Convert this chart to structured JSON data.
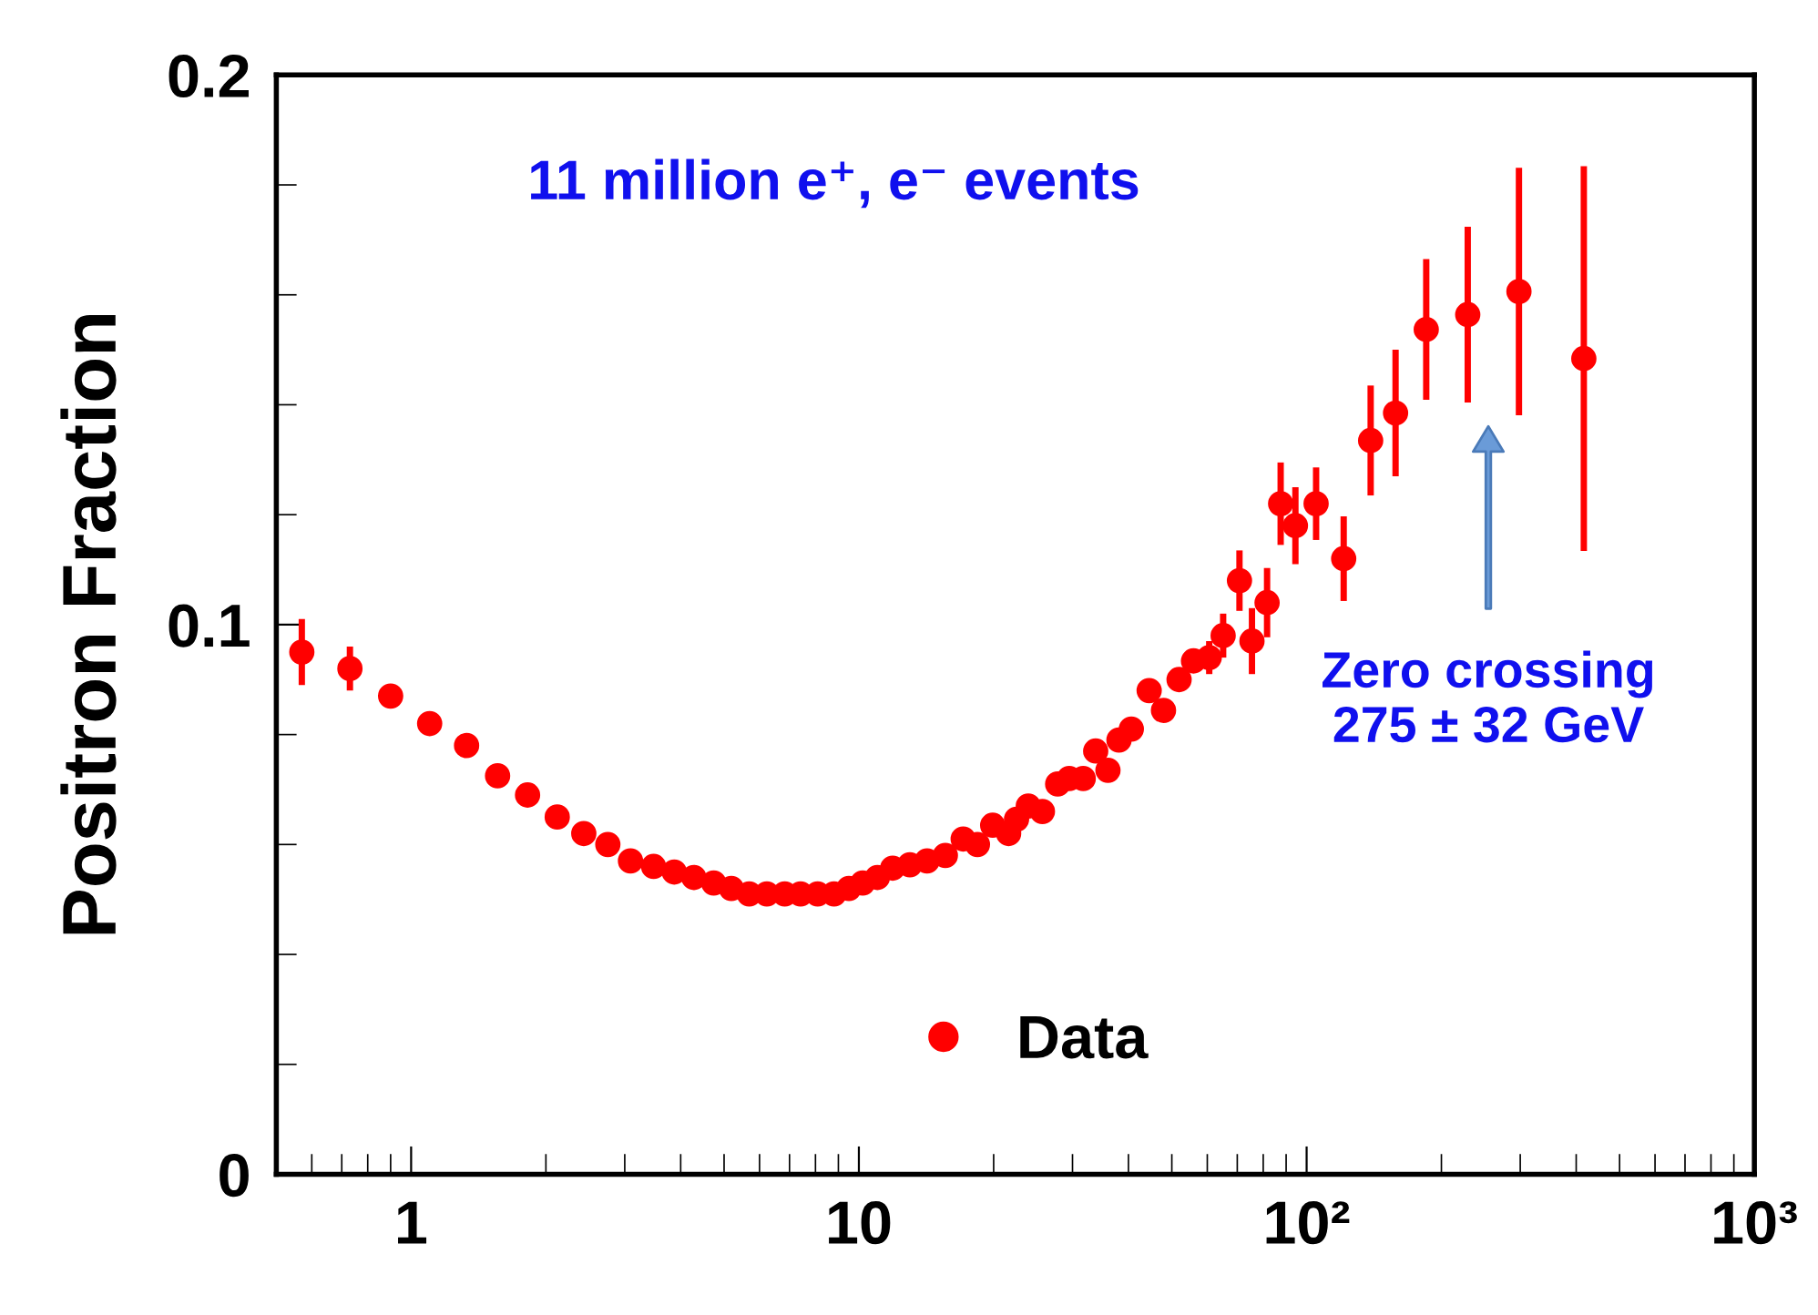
{
  "chart_data": {
    "type": "scatter",
    "ylabel": "Positron Fraction",
    "log": "x",
    "marker": "circle",
    "grid": false,
    "legend": "bottom",
    "xlim": [
      0.5,
      1000
    ],
    "ylim": [
      0,
      0.2
    ],
    "xticks": [
      1,
      10,
      {
        "value": 100,
        "label": "10²"
      },
      {
        "value": 1000,
        "label": "10³"
      }
    ],
    "yticks": [
      0,
      0.1,
      0.2
    ],
    "annotations": [
      "11 million e⁺, e⁻ events",
      "Zero crossing\n275 ± 32 GeV"
    ],
    "series": [
      {
        "name": "Data",
        "color": "#ff0000",
        "x": [
          0.57,
          0.73,
          0.9,
          1.1,
          1.33,
          1.56,
          1.82,
          2.12,
          2.43,
          2.75,
          3.09,
          3.48,
          3.87,
          4.28,
          4.74,
          5.19,
          5.69,
          6.23,
          6.83,
          7.41,
          8.09,
          8.8,
          9.5,
          10.2,
          11.0,
          11.9,
          13.0,
          14.2,
          15.6,
          17.1,
          18.4,
          19.9,
          21.6,
          22.5,
          23.9,
          25.7,
          27.8,
          29.5,
          31.7,
          33.8,
          36.0,
          38.1,
          40.6,
          44.5,
          47.9,
          51.9,
          55.9,
          60.6,
          65.1,
          70.8,
          75.5,
          81.6,
          87.5,
          94.4,
          105,
          121,
          139,
          158,
          185,
          229,
          298,
          416
        ],
        "values": [
          0.095,
          0.092,
          0.087,
          0.082,
          0.078,
          0.0725,
          0.069,
          0.065,
          0.062,
          0.06,
          0.057,
          0.056,
          0.055,
          0.054,
          0.053,
          0.052,
          0.051,
          0.051,
          0.051,
          0.051,
          0.051,
          0.051,
          0.052,
          0.053,
          0.054,
          0.0557,
          0.0563,
          0.057,
          0.058,
          0.061,
          0.06,
          0.0635,
          0.062,
          0.0646,
          0.067,
          0.066,
          0.071,
          0.072,
          0.072,
          0.077,
          0.0735,
          0.079,
          0.081,
          0.088,
          0.0844,
          0.09,
          0.0934,
          0.094,
          0.098,
          0.108,
          0.097,
          0.104,
          0.122,
          0.118,
          0.122,
          0.112,
          0.1335,
          0.1385,
          0.1537,
          0.1564,
          0.1606,
          0.1484
        ],
        "errors": [
          0.006,
          0.004,
          null,
          null,
          null,
          null,
          null,
          null,
          null,
          null,
          null,
          null,
          null,
          null,
          null,
          null,
          null,
          null,
          null,
          null,
          null,
          null,
          null,
          null,
          null,
          null,
          null,
          null,
          null,
          null,
          null,
          null,
          null,
          null,
          null,
          null,
          null,
          null,
          null,
          null,
          null,
          null,
          null,
          null,
          null,
          null,
          null,
          0.003,
          0.004,
          0.0055,
          0.006,
          0.0063,
          0.0075,
          0.007,
          0.0066,
          0.0077,
          0.01,
          0.0115,
          0.0128,
          0.016,
          0.0225,
          0.035
        ]
      }
    ]
  }
}
